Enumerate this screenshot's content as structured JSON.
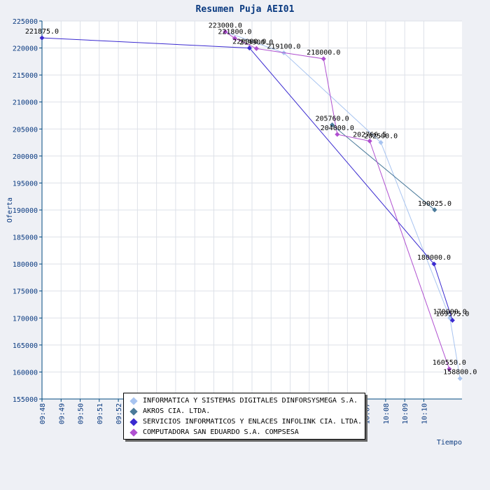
{
  "chart_data": {
    "type": "line",
    "title": "Resumen Puja AEI01",
    "xlabel": "Tiempo",
    "ylabel": "Oferta",
    "xlim": [
      "09:48",
      "10:10"
    ],
    "ylim": [
      155000,
      225000
    ],
    "ytick_step": 5000,
    "x_ticks": [
      "09:48",
      "09:49",
      "09:50",
      "09:51",
      "09:52",
      "",
      "",
      "",
      "",
      "",
      "",
      "",
      "",
      "",
      "",
      "",
      "10:06",
      "10:07",
      "10:08",
      "10:09",
      "10:10"
    ],
    "grid": true,
    "legend_position": "bottom-center",
    "series": [
      {
        "name": "INFORMATICA Y SISTEMAS DIGITALES DINFORSYSMEGA S.A.",
        "color": "#a8c4f0",
        "points": [
          {
            "t": "09:57:36",
            "y": 223000,
            "label": "223000.0"
          },
          {
            "t": "10:00:40",
            "y": 219100,
            "label": "219100.0"
          },
          {
            "t": "10:05:45",
            "y": 202500,
            "label": "202500.0"
          },
          {
            "t": "10:09:22",
            "y": 170000,
            "label": "170000.0"
          },
          {
            "t": "10:09:54",
            "y": 158800,
            "label": "158800.0"
          }
        ]
      },
      {
        "name": "AKROS CIA. LTDA.",
        "color": "#4a7a9a",
        "points": [
          {
            "t": "10:03:12",
            "y": 205760,
            "label": "205760.0"
          },
          {
            "t": "10:08:34",
            "y": 190025,
            "label": "190025.0"
          }
        ]
      },
      {
        "name": "SERVICIOS INFORMATICOS Y ENLACES INFOLINK CIA. LTDA.",
        "color": "#3a2ad0",
        "points": [
          {
            "t": "09:48:00",
            "y": 221875,
            "label": "221875.0"
          },
          {
            "t": "09:58:52",
            "y": 220000,
            "label": "220000.0"
          },
          {
            "t": "10:08:32",
            "y": 180000,
            "label": "180000.0"
          },
          {
            "t": "10:09:30",
            "y": 169575,
            "label": "169575.0"
          }
        ]
      },
      {
        "name": "COMPUTADORA SAN EDUARDO S.A. COMPSESA",
        "color": "#b050d0",
        "points": [
          {
            "t": "09:57:36",
            "y": 223000,
            "label": ""
          },
          {
            "t": "09:58:06",
            "y": 221800,
            "label": "221800.0"
          },
          {
            "t": "09:59:14",
            "y": 219900,
            "label": "219900.0"
          },
          {
            "t": "10:02:45",
            "y": 218000,
            "label": "218000.0"
          },
          {
            "t": "10:03:28",
            "y": 204000,
            "label": "204000.0"
          },
          {
            "t": "10:05:10",
            "y": 202766.5,
            "label": "202766.5"
          },
          {
            "t": "10:09:20",
            "y": 160550,
            "label": "160550.0"
          }
        ]
      }
    ]
  }
}
